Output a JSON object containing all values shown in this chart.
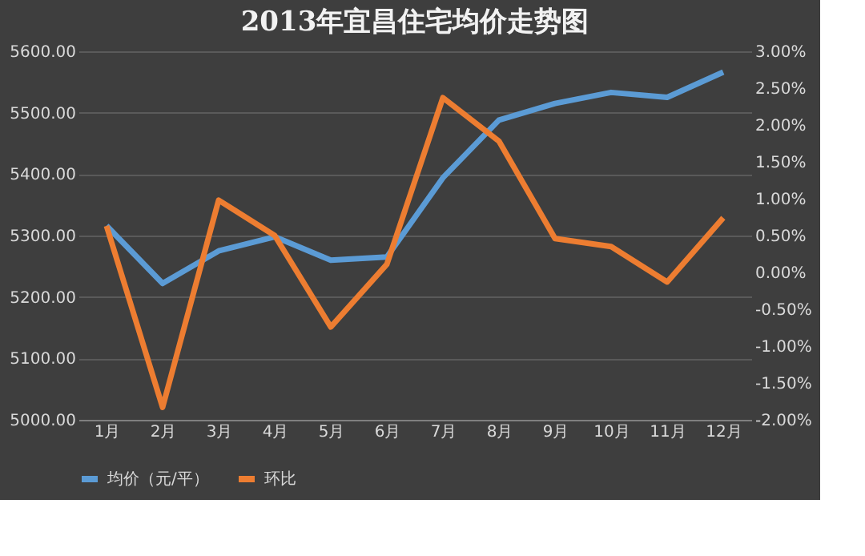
{
  "chart_data": {
    "type": "line",
    "title": "2013年宜昌住宅均价走势图",
    "categories": [
      "1月",
      "2月",
      "3月",
      "4月",
      "5月",
      "6月",
      "7月",
      "8月",
      "9月",
      "10月",
      "11月",
      "12月"
    ],
    "series": [
      {
        "name": "均价（元/平）",
        "color": "#5b9bd5",
        "values": [
          5316,
          5222,
          5275,
          5298,
          5260,
          5265,
          5394,
          5488,
          5515,
          5533,
          5525,
          5566
        ]
      },
      {
        "name": "环比",
        "color": "#ed7d31",
        "axis": "y2",
        "values": [
          0.63,
          -1.83,
          0.98,
          0.5,
          -0.74,
          0.11,
          2.37,
          1.78,
          0.46,
          0.35,
          -0.13,
          0.74
        ]
      }
    ],
    "ylim": [
      5000,
      5600
    ],
    "yticks": [
      {
        "value": 5000,
        "label": "5000.00"
      },
      {
        "value": 5100,
        "label": "5100.00"
      },
      {
        "value": 5200,
        "label": "5200.00"
      },
      {
        "value": 5300,
        "label": "5300.00"
      },
      {
        "value": 5400,
        "label": "5400.00"
      },
      {
        "value": 5500,
        "label": "5500.00"
      },
      {
        "value": 5600,
        "label": "5600.00"
      }
    ],
    "y2lim": [
      -2,
      3
    ],
    "y2ticks": [
      {
        "value": -2,
        "label": "-2.00%"
      },
      {
        "value": -1.5,
        "label": "-1.50%"
      },
      {
        "value": -1,
        "label": "-1.00%"
      },
      {
        "value": -0.5,
        "label": "-0.50%"
      },
      {
        "value": 0,
        "label": "0.00%"
      },
      {
        "value": 0.5,
        "label": "0.50%"
      },
      {
        "value": 1,
        "label": "1.00%"
      },
      {
        "value": 1.5,
        "label": "1.50%"
      },
      {
        "value": 2,
        "label": "2.00%"
      },
      {
        "value": 2.5,
        "label": "2.50%"
      },
      {
        "value": 3,
        "label": "3.00%"
      }
    ],
    "grid": "y",
    "legend": "bottom",
    "marker": "none",
    "line_style": "solid"
  }
}
